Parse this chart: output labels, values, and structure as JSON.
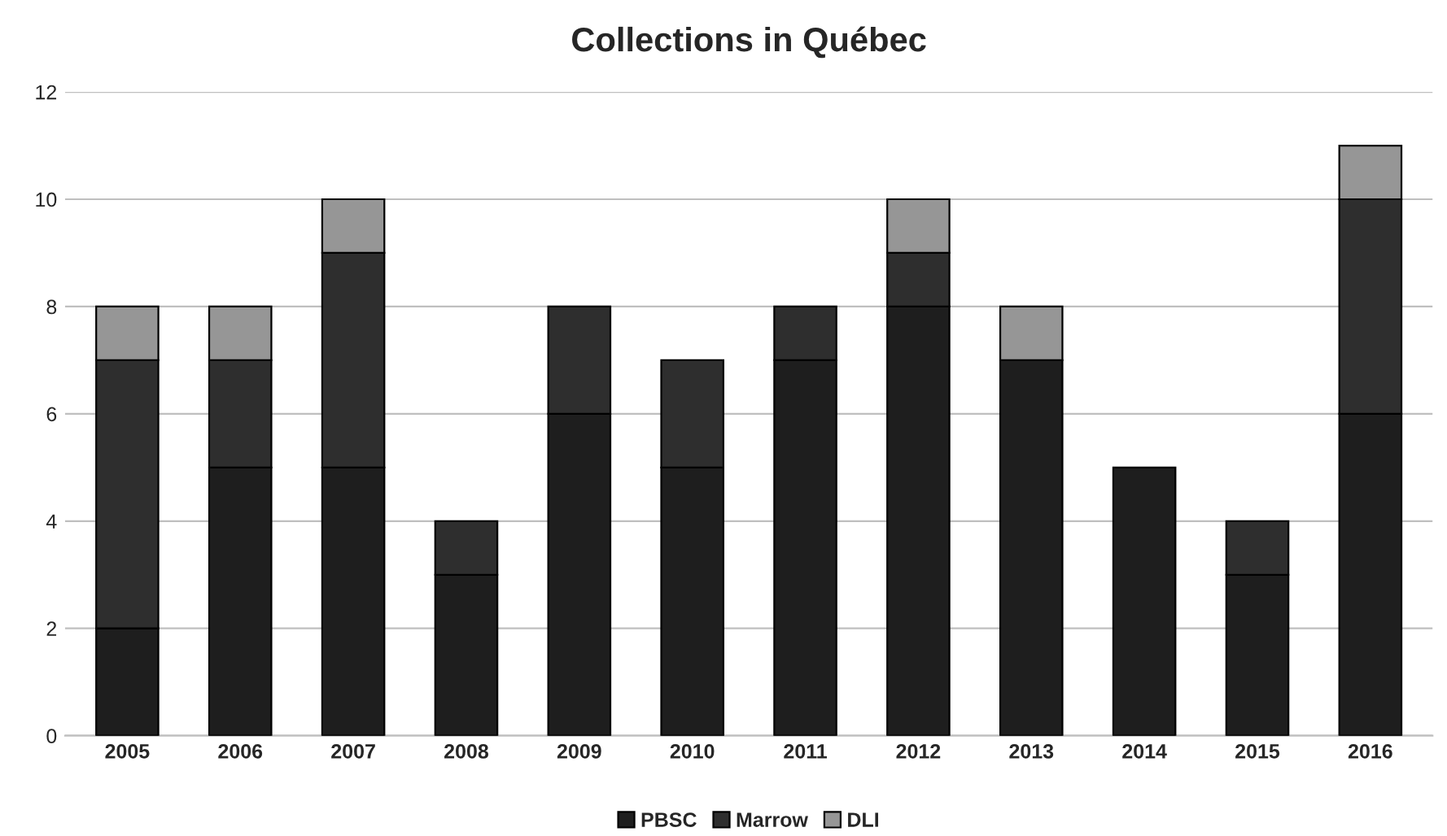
{
  "chart_data": {
    "type": "bar",
    "title": "Collections in Québec",
    "stacked": true,
    "categories": [
      "2005",
      "2006",
      "2007",
      "2008",
      "2009",
      "2010",
      "2011",
      "2012",
      "2013",
      "2014",
      "2015",
      "2016"
    ],
    "series": [
      {
        "name": "PBSC",
        "color": "#1e1e1e",
        "values": [
          2,
          5,
          5,
          3,
          6,
          5,
          7,
          8,
          7,
          5,
          3,
          6
        ]
      },
      {
        "name": "Marrow",
        "color": "#2e2e2e",
        "values": [
          5,
          2,
          4,
          1,
          2,
          2,
          1,
          1,
          0,
          0,
          1,
          4
        ]
      },
      {
        "name": "DLI",
        "color": "#969696",
        "values": [
          1,
          1,
          1,
          0,
          0,
          0,
          0,
          1,
          1,
          0,
          0,
          1
        ]
      }
    ],
    "ylim": [
      0,
      12
    ],
    "yticks": [
      0,
      2,
      4,
      6,
      8,
      10,
      12
    ],
    "grid": "y",
    "legend": "bottom"
  }
}
